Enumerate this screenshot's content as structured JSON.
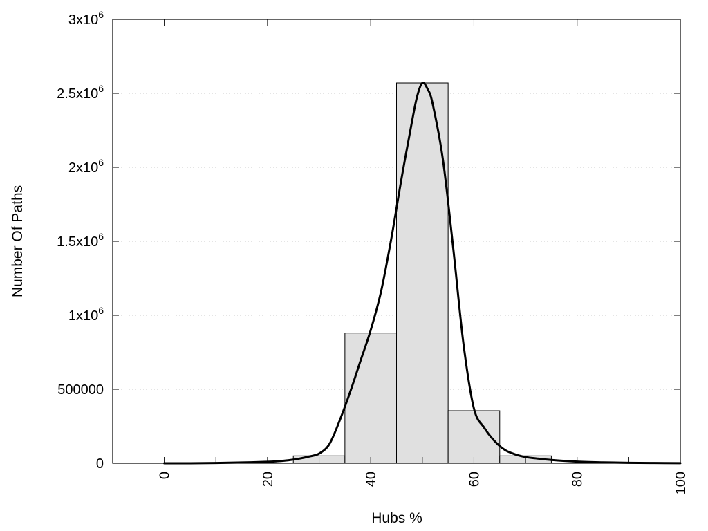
{
  "chart_data": {
    "type": "bar",
    "xlabel": "Hubs %",
    "ylabel": "Number Of Paths",
    "xlim": [
      -10,
      100
    ],
    "ylim": [
      0,
      3000000
    ],
    "x_ticks": [
      {
        "value": 0,
        "label": "0"
      },
      {
        "value": 20,
        "label": "20"
      },
      {
        "value": 40,
        "label": "40"
      },
      {
        "value": 60,
        "label": "60"
      },
      {
        "value": 80,
        "label": "80"
      },
      {
        "value": 100,
        "label": "100"
      }
    ],
    "y_ticks": [
      {
        "value": 0,
        "base": "0",
        "exp": ""
      },
      {
        "value": 500000,
        "base": "500000",
        "exp": ""
      },
      {
        "value": 1000000,
        "base": "1x10",
        "exp": "6"
      },
      {
        "value": 1500000,
        "base": "1.5x10",
        "exp": "6"
      },
      {
        "value": 2000000,
        "base": "2x10",
        "exp": "6"
      },
      {
        "value": 2500000,
        "base": "2.5x10",
        "exp": "6"
      },
      {
        "value": 3000000,
        "base": "3x10",
        "exp": "6"
      }
    ],
    "grid": "horizontal dotted",
    "bars": [
      {
        "x0": 25,
        "x1": 35,
        "value": 50000
      },
      {
        "x0": 35,
        "x1": 45,
        "value": 880000
      },
      {
        "x0": 45,
        "x1": 55,
        "value": 2570000
      },
      {
        "x0": 55,
        "x1": 65,
        "value": 355000
      },
      {
        "x0": 65,
        "x1": 75,
        "value": 50000
      }
    ],
    "fit_curve": {
      "x": [
        0,
        5,
        10,
        15,
        20,
        22,
        24,
        26,
        28,
        30,
        32,
        34,
        36,
        38,
        40,
        42,
        44,
        46,
        48,
        49,
        50,
        51,
        52,
        54,
        56,
        58,
        60,
        62,
        64,
        66,
        68,
        70,
        72,
        75,
        80,
        85,
        90,
        95,
        100
      ],
      "y": [
        0,
        0,
        2000,
        5000,
        10000,
        14000,
        20000,
        30000,
        45000,
        65000,
        130000,
        290000,
        480000,
        690000,
        900000,
        1160000,
        1520000,
        1930000,
        2310000,
        2480000,
        2570000,
        2530000,
        2430000,
        2050000,
        1450000,
        800000,
        370000,
        240000,
        150000,
        90000,
        60000,
        42000,
        33000,
        22000,
        11000,
        6000,
        3000,
        1500,
        500
      ]
    }
  }
}
